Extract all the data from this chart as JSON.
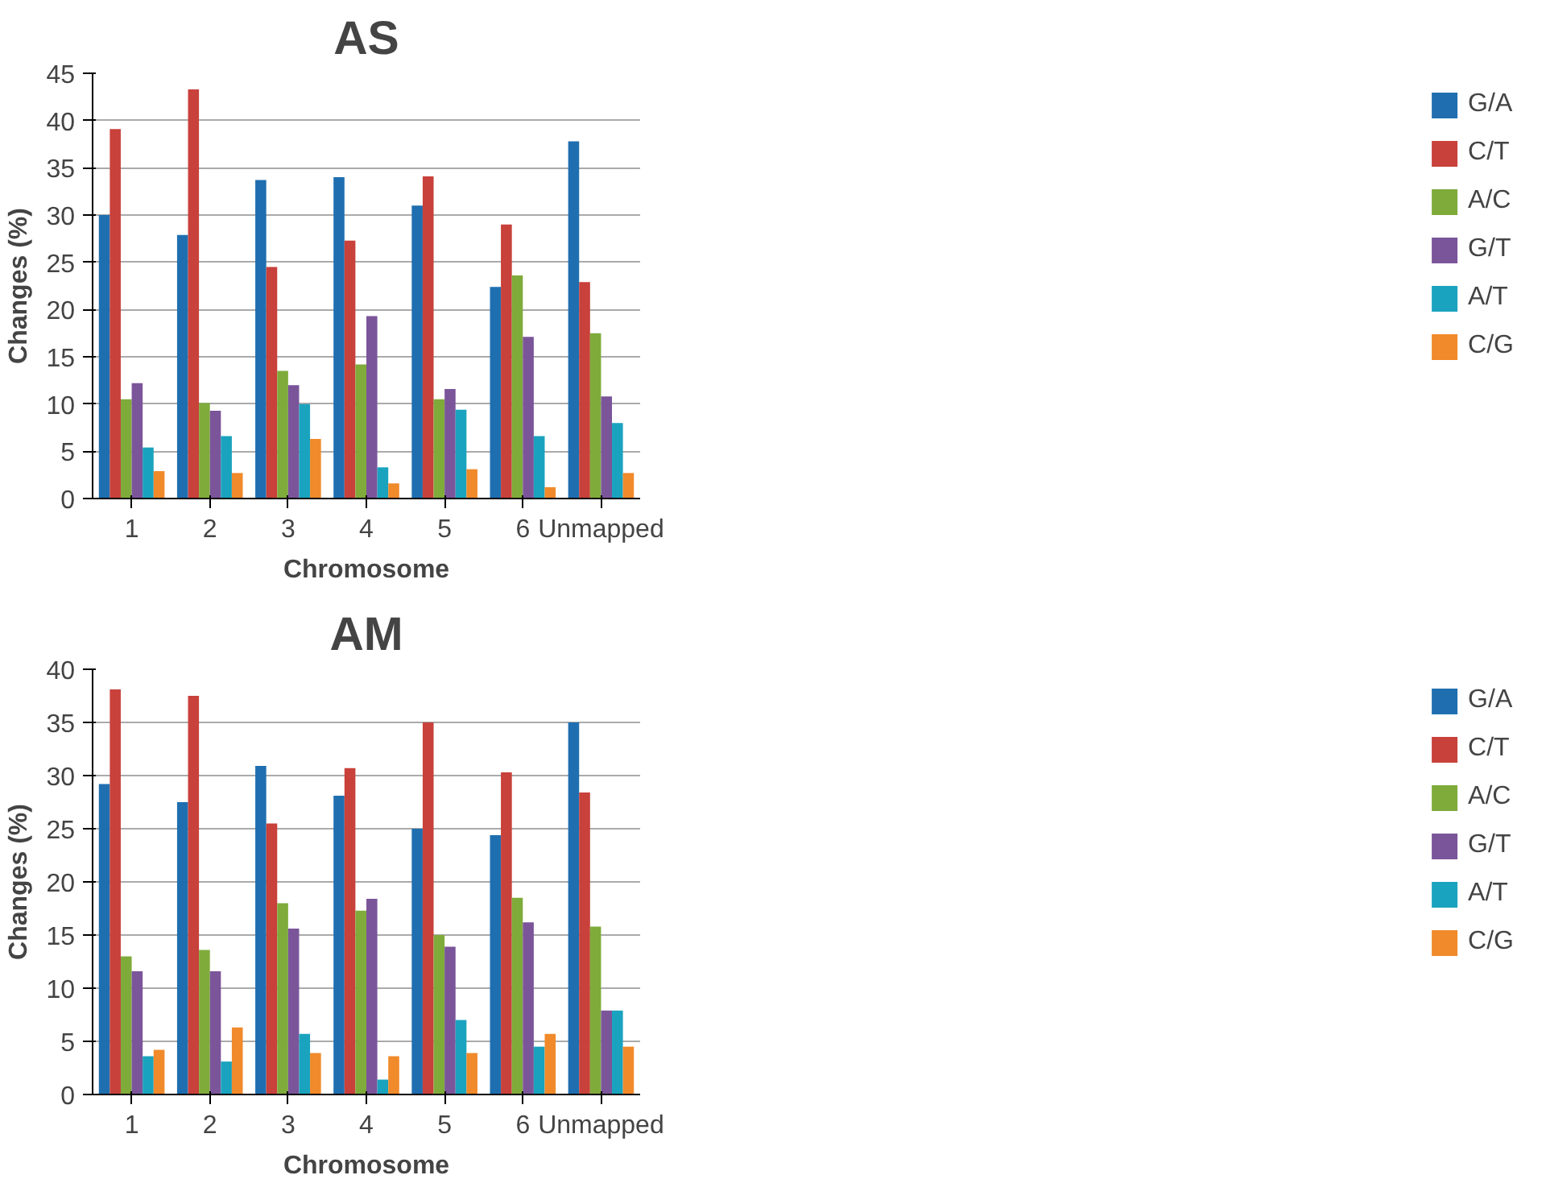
{
  "chart_data": [
    {
      "type": "bar",
      "title": "AS",
      "xlabel": "Chromosome",
      "ylabel": "Changes (%)",
      "categories": [
        "1",
        "2",
        "3",
        "4",
        "5",
        "6",
        "Unmapped"
      ],
      "ylim": [
        0,
        45
      ],
      "yticks": [
        0,
        5,
        10,
        15,
        20,
        25,
        30,
        35,
        40,
        45
      ],
      "grid": "y",
      "legend": "right",
      "series": [
        {
          "name": "G/A",
          "color": "#1f6fb0",
          "values": [
            30,
            27.9,
            33.7,
            34,
            31,
            22.4,
            37.8
          ]
        },
        {
          "name": "C/T",
          "color": "#c8413b",
          "values": [
            39.1,
            43.3,
            24.5,
            27.3,
            34.1,
            29,
            22.9
          ]
        },
        {
          "name": "A/C",
          "color": "#7fab3b",
          "values": [
            10.5,
            10.1,
            13.5,
            14.2,
            10.5,
            23.6,
            17.5
          ]
        },
        {
          "name": "G/T",
          "color": "#7b559a",
          "values": [
            12.2,
            9.3,
            12,
            19.3,
            11.6,
            17.1,
            10.8
          ]
        },
        {
          "name": "A/T",
          "color": "#1aa3be",
          "values": [
            5.4,
            6.6,
            10,
            3.3,
            9.4,
            6.6,
            8
          ]
        },
        {
          "name": "C/G",
          "color": "#f08a2a",
          "values": [
            2.9,
            2.7,
            6.3,
            1.6,
            3.1,
            1.2,
            2.7
          ]
        }
      ]
    },
    {
      "type": "bar",
      "title": "AM",
      "xlabel": "Chromosome",
      "ylabel": "Changes (%)",
      "categories": [
        "1",
        "2",
        "3",
        "4",
        "5",
        "6",
        "Unmapped"
      ],
      "ylim": [
        0,
        40
      ],
      "yticks": [
        0,
        5,
        10,
        15,
        20,
        25,
        30,
        35,
        40
      ],
      "grid": "y",
      "legend": "right",
      "series": [
        {
          "name": "G/A",
          "color": "#1f6fb0",
          "values": [
            29.2,
            27.5,
            30.9,
            28.1,
            25,
            24.4,
            35
          ]
        },
        {
          "name": "C/T",
          "color": "#c8413b",
          "values": [
            38.1,
            37.5,
            25.5,
            30.7,
            35,
            30.3,
            28.4
          ]
        },
        {
          "name": "A/C",
          "color": "#7fab3b",
          "values": [
            13,
            13.6,
            18,
            17.3,
            15,
            18.5,
            15.8
          ]
        },
        {
          "name": "G/T",
          "color": "#7b559a",
          "values": [
            11.6,
            11.6,
            15.6,
            18.4,
            13.9,
            16.2,
            7.9
          ]
        },
        {
          "name": "A/T",
          "color": "#1aa3be",
          "values": [
            3.6,
            3.1,
            5.7,
            1.4,
            7,
            4.5,
            7.9
          ]
        },
        {
          "name": "C/G",
          "color": "#f08a2a",
          "values": [
            4.2,
            6.3,
            3.9,
            3.6,
            3.9,
            5.7,
            4.5
          ]
        }
      ]
    }
  ]
}
